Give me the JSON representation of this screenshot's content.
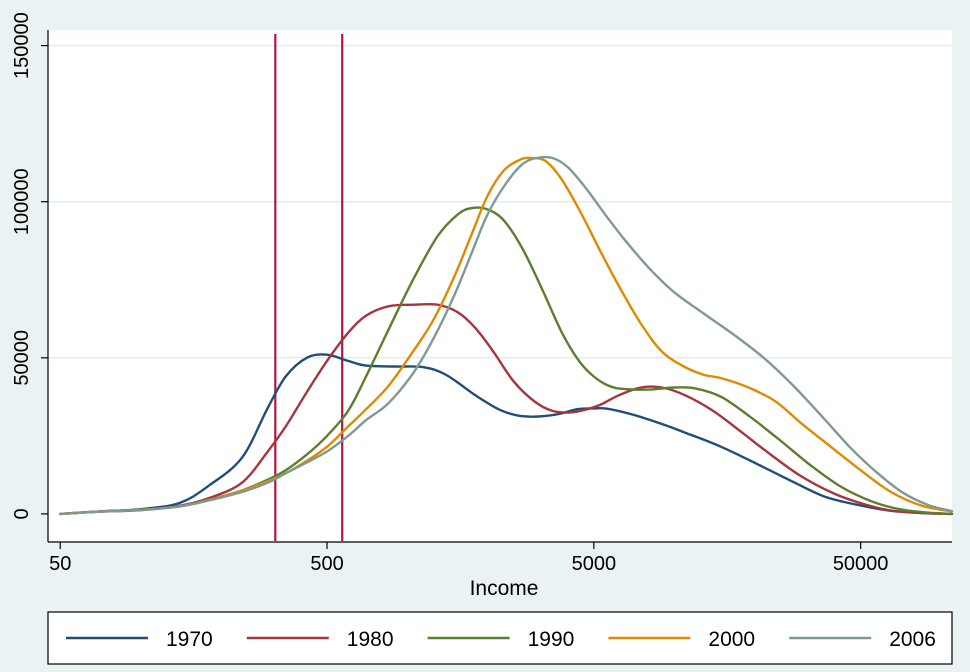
{
  "chart_data": {
    "type": "line",
    "title": "",
    "xlabel": "Income",
    "ylabel": "",
    "x_scale": "log",
    "xlim": [
      45,
      110000
    ],
    "ylim": [
      -9000,
      155000
    ],
    "x_ticks": [
      {
        "value": 50,
        "label": "50"
      },
      {
        "value": 500,
        "label": "500"
      },
      {
        "value": 5000,
        "label": "5000"
      },
      {
        "value": 50000,
        "label": "50000"
      }
    ],
    "y_ticks": [
      {
        "value": 0,
        "label": "0"
      },
      {
        "value": 50000,
        "label": "50000"
      },
      {
        "value": 100000,
        "label": "100000"
      },
      {
        "value": 150000,
        "label": "150000"
      }
    ],
    "grid": "horizontal",
    "legend_position": "bottom",
    "reference_lines": [
      {
        "x": 320,
        "color": "#b2173f"
      },
      {
        "x": 570,
        "color": "#b2173f"
      }
    ],
    "series": [
      {
        "name": "1970",
        "color": "#1f4e79",
        "points": [
          [
            50,
            0
          ],
          [
            70,
            800
          ],
          [
            100,
            1500
          ],
          [
            140,
            3500
          ],
          [
            180,
            9000
          ],
          [
            240,
            18000
          ],
          [
            300,
            34000
          ],
          [
            350,
            44000
          ],
          [
            420,
            50000
          ],
          [
            500,
            51000
          ],
          [
            600,
            49000
          ],
          [
            700,
            47500
          ],
          [
            900,
            47200
          ],
          [
            1150,
            47000
          ],
          [
            1400,
            44500
          ],
          [
            1800,
            38000
          ],
          [
            2200,
            33500
          ],
          [
            2600,
            31500
          ],
          [
            3100,
            31200
          ],
          [
            3700,
            32000
          ],
          [
            4300,
            33500
          ],
          [
            5000,
            33800
          ],
          [
            5600,
            33700
          ],
          [
            7000,
            31800
          ],
          [
            9000,
            28800
          ],
          [
            11000,
            26000
          ],
          [
            15000,
            21500
          ],
          [
            21000,
            15500
          ],
          [
            28000,
            10200
          ],
          [
            37000,
            5400
          ],
          [
            50000,
            2700
          ],
          [
            65000,
            1000
          ],
          [
            85000,
            300
          ],
          [
            110000,
            0
          ]
        ]
      },
      {
        "name": "1980",
        "color": "#a8343f",
        "points": [
          [
            50,
            0
          ],
          [
            70,
            700
          ],
          [
            100,
            1200
          ],
          [
            140,
            2600
          ],
          [
            180,
            5000
          ],
          [
            240,
            10000
          ],
          [
            300,
            20000
          ],
          [
            350,
            28000
          ],
          [
            420,
            39000
          ],
          [
            500,
            49000
          ],
          [
            600,
            58000
          ],
          [
            700,
            63500
          ],
          [
            850,
            66500
          ],
          [
            1050,
            67000
          ],
          [
            1300,
            67000
          ],
          [
            1550,
            64500
          ],
          [
            1800,
            59500
          ],
          [
            2100,
            52000
          ],
          [
            2500,
            42500
          ],
          [
            3000,
            36000
          ],
          [
            3500,
            33000
          ],
          [
            4100,
            32500
          ],
          [
            4700,
            33500
          ],
          [
            5300,
            35000
          ],
          [
            6200,
            38000
          ],
          [
            7500,
            40500
          ],
          [
            9000,
            40500
          ],
          [
            11000,
            38000
          ],
          [
            14000,
            33000
          ],
          [
            18000,
            26000
          ],
          [
            23000,
            19000
          ],
          [
            30000,
            12000
          ],
          [
            40000,
            6400
          ],
          [
            52000,
            3000
          ],
          [
            65000,
            1100
          ],
          [
            85000,
            300
          ],
          [
            110000,
            0
          ]
        ]
      },
      {
        "name": "1990",
        "color": "#5b7f2f",
        "points": [
          [
            50,
            0
          ],
          [
            70,
            700
          ],
          [
            100,
            1300
          ],
          [
            140,
            2400
          ],
          [
            180,
            4500
          ],
          [
            240,
            7500
          ],
          [
            300,
            11000
          ],
          [
            350,
            14000
          ],
          [
            420,
            19000
          ],
          [
            500,
            25000
          ],
          [
            600,
            33000
          ],
          [
            700,
            44000
          ],
          [
            850,
            59000
          ],
          [
            1050,
            75000
          ],
          [
            1300,
            89000
          ],
          [
            1550,
            96000
          ],
          [
            1750,
            98000
          ],
          [
            2000,
            97500
          ],
          [
            2300,
            94000
          ],
          [
            2700,
            85000
          ],
          [
            3200,
            72000
          ],
          [
            3800,
            58000
          ],
          [
            4400,
            49000
          ],
          [
            5000,
            44000
          ],
          [
            5700,
            41000
          ],
          [
            6500,
            40000
          ],
          [
            8000,
            39800
          ],
          [
            10000,
            40500
          ],
          [
            12000,
            40200
          ],
          [
            15000,
            37500
          ],
          [
            19000,
            31500
          ],
          [
            25000,
            23500
          ],
          [
            32000,
            16000
          ],
          [
            42000,
            8800
          ],
          [
            55000,
            4000
          ],
          [
            70000,
            1500
          ],
          [
            90000,
            400
          ],
          [
            110000,
            0
          ]
        ]
      },
      {
        "name": "2000",
        "color": "#e08a00",
        "points": [
          [
            50,
            0
          ],
          [
            70,
            700
          ],
          [
            100,
            1300
          ],
          [
            140,
            2400
          ],
          [
            180,
            4400
          ],
          [
            240,
            7400
          ],
          [
            300,
            10500
          ],
          [
            350,
            13000
          ],
          [
            420,
            17000
          ],
          [
            500,
            21500
          ],
          [
            600,
            28000
          ],
          [
            700,
            33500
          ],
          [
            850,
            41000
          ],
          [
            1050,
            52000
          ],
          [
            1250,
            62000
          ],
          [
            1500,
            76000
          ],
          [
            1750,
            90000
          ],
          [
            2000,
            102000
          ],
          [
            2300,
            110000
          ],
          [
            2650,
            113500
          ],
          [
            2900,
            114000
          ],
          [
            3300,
            113000
          ],
          [
            3800,
            107000
          ],
          [
            4500,
            96000
          ],
          [
            5300,
            84000
          ],
          [
            6300,
            72000
          ],
          [
            7500,
            61000
          ],
          [
            9000,
            52000
          ],
          [
            11000,
            47000
          ],
          [
            13000,
            44500
          ],
          [
            15000,
            43500
          ],
          [
            19000,
            40500
          ],
          [
            24000,
            36000
          ],
          [
            30000,
            29000
          ],
          [
            38000,
            22000
          ],
          [
            50000,
            14000
          ],
          [
            65000,
            7000
          ],
          [
            85000,
            2600
          ],
          [
            110000,
            800
          ]
        ]
      },
      {
        "name": "2006",
        "color": "#7f9a92",
        "points": [
          [
            50,
            0
          ],
          [
            70,
            700
          ],
          [
            100,
            1300
          ],
          [
            140,
            2400
          ],
          [
            180,
            4300
          ],
          [
            240,
            7000
          ],
          [
            300,
            10000
          ],
          [
            350,
            13000
          ],
          [
            420,
            16500
          ],
          [
            500,
            20000
          ],
          [
            600,
            25000
          ],
          [
            700,
            30000
          ],
          [
            850,
            35500
          ],
          [
            1050,
            45000
          ],
          [
            1250,
            56000
          ],
          [
            1500,
            70000
          ],
          [
            1750,
            84000
          ],
          [
            2000,
            96000
          ],
          [
            2350,
            106000
          ],
          [
            2700,
            112000
          ],
          [
            3050,
            114000
          ],
          [
            3500,
            114000
          ],
          [
            4000,
            111000
          ],
          [
            4700,
            104000
          ],
          [
            5500,
            96000
          ],
          [
            6500,
            88000
          ],
          [
            8000,
            79000
          ],
          [
            10000,
            71000
          ],
          [
            13000,
            64000
          ],
          [
            17000,
            57000
          ],
          [
            22000,
            49500
          ],
          [
            28000,
            41000
          ],
          [
            36000,
            31000
          ],
          [
            46000,
            21000
          ],
          [
            58000,
            13000
          ],
          [
            72000,
            6800
          ],
          [
            90000,
            2800
          ],
          [
            110000,
            900
          ]
        ]
      }
    ]
  }
}
